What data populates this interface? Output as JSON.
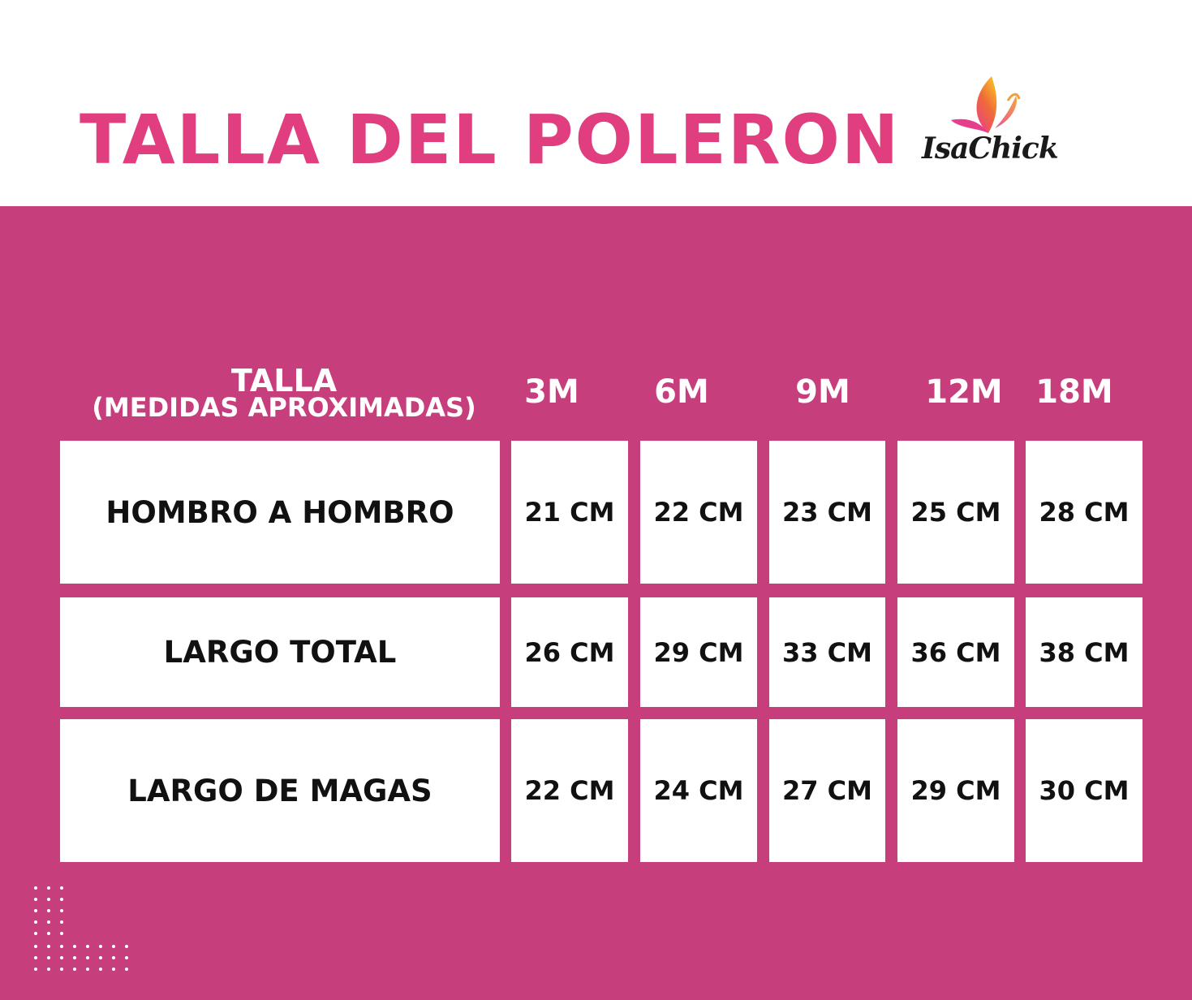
{
  "header": {
    "title": "TALLA DEL POLERON",
    "logo_text": "IsaChick"
  },
  "table": {
    "header_label": "TALLA",
    "header_sublabel": "(MEDIDAS APROXIMADAS)",
    "sizes": [
      "3M",
      "6M",
      "9M",
      "12M",
      "18M"
    ],
    "rows": [
      {
        "label": "HOMBRO A HOMBRO",
        "values": [
          "21 CM",
          "22 CM",
          "23 CM",
          "25 CM",
          "28 CM"
        ]
      },
      {
        "label": "LARGO TOTAL",
        "values": [
          "26 CM",
          "29 CM",
          "33 CM",
          "36 CM",
          "38 CM"
        ]
      },
      {
        "label": "LARGO DE MAGAS",
        "values": [
          "22 CM",
          "24 CM",
          "27 CM",
          "29 CM",
          "30 CM"
        ]
      }
    ]
  },
  "colors": {
    "brand_pink": "#e03e7e",
    "panel_magenta": "#c63e7b",
    "cell_white": "#ffffff",
    "text_dark": "#111111"
  },
  "icons": [
    "butterfly-logo-icon",
    "decorative-dot-grid-icon"
  ]
}
